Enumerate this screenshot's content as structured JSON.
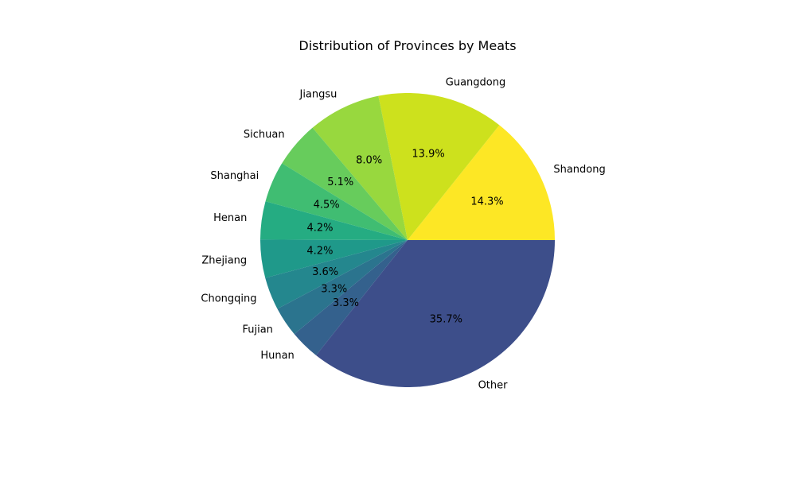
{
  "chart_data": {
    "type": "pie",
    "title": "Distribution of Provinces by Meats",
    "start_angle_deg": 0,
    "direction": "counterclockwise",
    "slices": [
      {
        "label": "Shandong",
        "value": 14.3,
        "pct_label": "14.3%",
        "color": "#fde725"
      },
      {
        "label": "Guangdong",
        "value": 13.9,
        "pct_label": "13.9%",
        "color": "#cde11d"
      },
      {
        "label": "Jiangsu",
        "value": 8.0,
        "pct_label": "8.0%",
        "color": "#98d83e"
      },
      {
        "label": "Sichuan",
        "value": 5.1,
        "pct_label": "5.1%",
        "color": "#67cc5c"
      },
      {
        "label": "Shanghai",
        "value": 4.5,
        "pct_label": "4.5%",
        "color": "#40bd72"
      },
      {
        "label": "Henan",
        "value": 4.2,
        "pct_label": "4.2%",
        "color": "#25ac82"
      },
      {
        "label": "Zhejiang",
        "value": 4.2,
        "pct_label": "4.2%",
        "color": "#1f998a"
      },
      {
        "label": "Chongqing",
        "value": 3.6,
        "pct_label": "3.6%",
        "color": "#24878e"
      },
      {
        "label": "Fujian",
        "value": 3.3,
        "pct_label": "3.3%",
        "color": "#2b748e"
      },
      {
        "label": "Hunan",
        "value": 3.3,
        "pct_label": "3.3%",
        "color": "#34618d"
      },
      {
        "label": "Other",
        "value": 35.7,
        "pct_label": "35.7%",
        "color": "#3d4e8a"
      }
    ]
  }
}
